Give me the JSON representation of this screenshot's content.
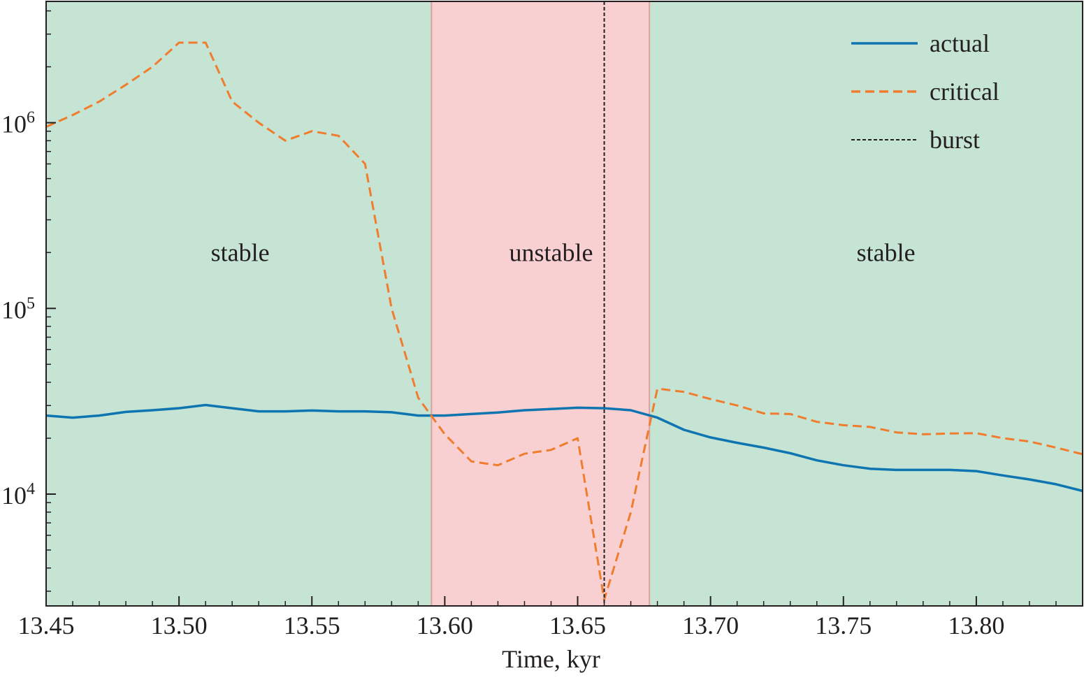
{
  "chart_data": {
    "type": "line",
    "title": "",
    "xlabel": "Time, kyr",
    "ylabel": "",
    "xlim": [
      13.45,
      13.84
    ],
    "ylim": [
      2500,
      4500000
    ],
    "yscale": "log",
    "grid": false,
    "legend_position": "top-right",
    "x_ticks": [
      13.45,
      13.5,
      13.55,
      13.6,
      13.65,
      13.7,
      13.75,
      13.8
    ],
    "x_tick_labels": [
      "13.45",
      "13.50",
      "13.55",
      "13.60",
      "13.65",
      "13.70",
      "13.75",
      "13.80"
    ],
    "y_ticks": [
      {
        "value": 10000,
        "base": "10",
        "exp": "4"
      },
      {
        "value": 100000,
        "base": "10",
        "exp": "5"
      },
      {
        "value": 1000000,
        "base": "10",
        "exp": "6"
      }
    ],
    "regions": [
      {
        "x0": 13.45,
        "x1": 13.595,
        "label": "stable",
        "label_x": 13.523,
        "label_y": 200000,
        "color": "#c6e4d4"
      },
      {
        "x0": 13.595,
        "x1": 13.677,
        "label": "unstable",
        "label_x": 13.64,
        "label_y": 200000,
        "color": "#f9d0d2"
      },
      {
        "x0": 13.677,
        "x1": 13.84,
        "label": "stable",
        "label_x": 13.766,
        "label_y": 200000,
        "color": "#c6e4d4"
      }
    ],
    "burst_x": 13.66,
    "series": [
      {
        "name": "actual",
        "color": "#0e75b0",
        "style": "solid",
        "x": [
          13.45,
          13.46,
          13.47,
          13.48,
          13.49,
          13.5,
          13.51,
          13.52,
          13.53,
          13.54,
          13.55,
          13.56,
          13.57,
          13.58,
          13.59,
          13.6,
          13.61,
          13.62,
          13.63,
          13.64,
          13.65,
          13.66,
          13.67,
          13.68,
          13.69,
          13.7,
          13.71,
          13.72,
          13.73,
          13.74,
          13.75,
          13.76,
          13.77,
          13.78,
          13.79,
          13.8,
          13.81,
          13.82,
          13.83,
          13.84
        ],
        "values": [
          26500,
          25800,
          26500,
          27700,
          28300,
          29000,
          30200,
          29000,
          27900,
          27900,
          28200,
          27900,
          27900,
          27600,
          26500,
          26500,
          27000,
          27500,
          28300,
          28700,
          29200,
          29000,
          28300,
          25800,
          22200,
          20200,
          18900,
          17800,
          16600,
          15200,
          14300,
          13700,
          13500,
          13500,
          13500,
          13300,
          12600,
          12000,
          11300,
          10400
        ]
      },
      {
        "name": "critical",
        "color": "#f07c2d",
        "style": "dashed",
        "x": [
          13.45,
          13.46,
          13.47,
          13.48,
          13.49,
          13.5,
          13.51,
          13.52,
          13.53,
          13.54,
          13.55,
          13.56,
          13.57,
          13.58,
          13.59,
          13.6,
          13.61,
          13.62,
          13.63,
          13.64,
          13.65,
          13.66,
          13.67,
          13.68,
          13.69,
          13.7,
          13.71,
          13.72,
          13.73,
          13.74,
          13.75,
          13.76,
          13.77,
          13.78,
          13.79,
          13.8,
          13.81,
          13.82,
          13.83,
          13.84
        ],
        "values": [
          950000,
          1100000,
          1300000,
          1600000,
          2000000,
          2700000,
          2700000,
          1300000,
          1000000,
          800000,
          900000,
          850000,
          600000,
          100000,
          33000,
          21000,
          15000,
          14300,
          16500,
          17300,
          20000,
          2700,
          8000,
          37000,
          35500,
          32500,
          30000,
          27200,
          27000,
          24500,
          23500,
          23000,
          21500,
          21000,
          21200,
          21300,
          20000,
          19200,
          17800,
          16400
        ]
      }
    ],
    "legend": [
      {
        "label": "actual",
        "style": "solid",
        "color": "#0e75b0"
      },
      {
        "label": "critical",
        "style": "dashed",
        "color": "#f07c2d"
      },
      {
        "label": "burst",
        "style": "dotted",
        "color": "#231f20"
      }
    ]
  }
}
